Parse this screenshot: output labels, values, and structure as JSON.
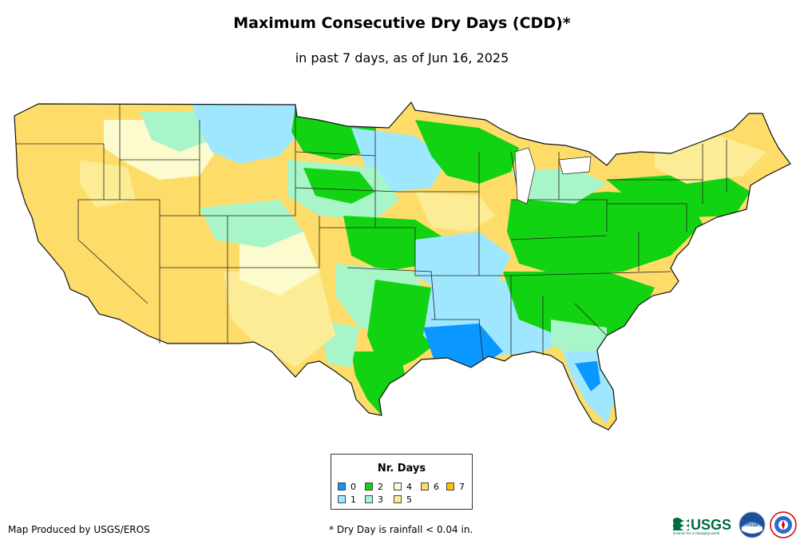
{
  "title": "Maximum Consecutive Dry Days (CDD)*",
  "subtitle": "in past 7 days, as of Jun 16, 2025",
  "legend": {
    "title": "Nr. Days",
    "items": [
      {
        "label": "0",
        "color": "#0a97ff"
      },
      {
        "label": "1",
        "color": "#9ee7ff"
      },
      {
        "label": "2",
        "color": "#12d312"
      },
      {
        "label": "3",
        "color": "#a7f5c8"
      },
      {
        "label": "4",
        "color": "#fbfbcd"
      },
      {
        "label": "5",
        "color": "#fbec95"
      },
      {
        "label": "6",
        "color": "#fddc69"
      },
      {
        "label": "7",
        "color": "#ffbf00"
      }
    ]
  },
  "footer": {
    "credit": "Map Produced by USGS/EROS",
    "note": "* Dry Day is rainfall < 0.04 in."
  },
  "logos": {
    "usgs": {
      "name": "USGS",
      "tagline": "science for a changing world"
    },
    "noaa": {
      "name": "noaa"
    },
    "nws": {
      "name": "NATIONAL WEATHER SERVICE"
    }
  }
}
